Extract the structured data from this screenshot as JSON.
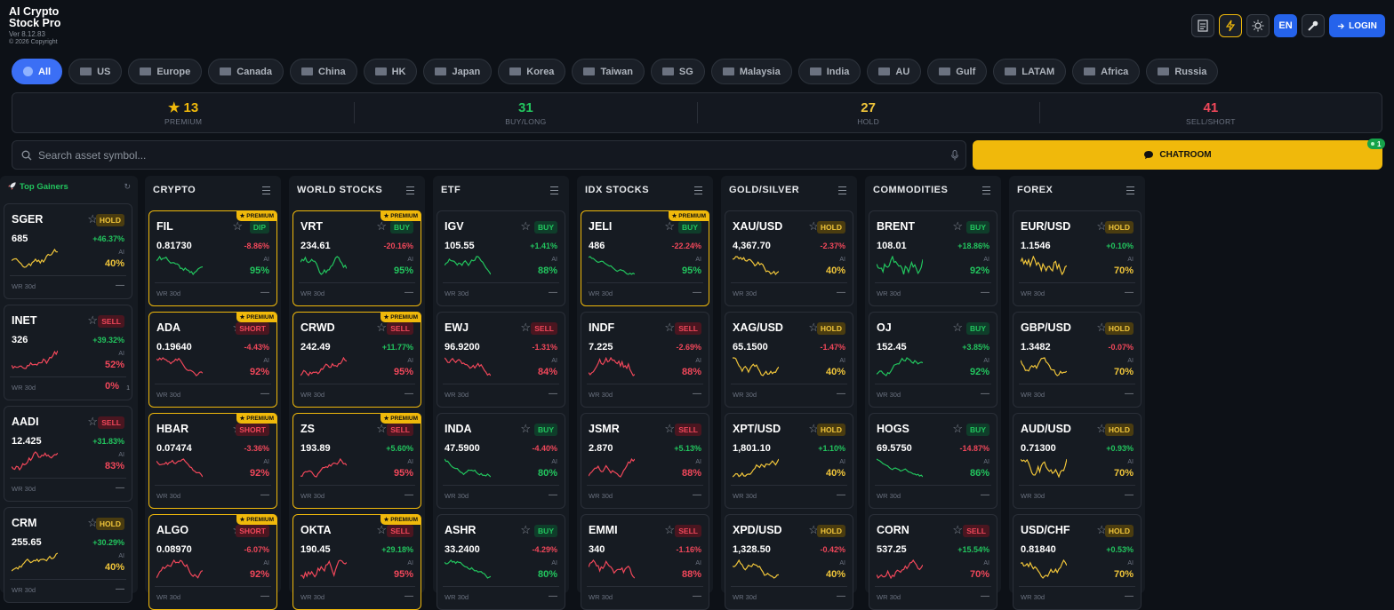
{
  "header": {
    "title_line1": "AI Crypto",
    "title_line2": "Stock Pro",
    "version": "Ver 8.12.83",
    "copyright": "© 2026 Copyright",
    "language": "EN",
    "login": "LOGIN"
  },
  "tabs": [
    {
      "label": "All",
      "active": true
    },
    {
      "label": "US"
    },
    {
      "label": "Europe"
    },
    {
      "label": "Canada"
    },
    {
      "label": "China"
    },
    {
      "label": "HK"
    },
    {
      "label": "Japan"
    },
    {
      "label": "Korea"
    },
    {
      "label": "Taiwan"
    },
    {
      "label": "SG"
    },
    {
      "label": "Malaysia"
    },
    {
      "label": "India"
    },
    {
      "label": "AU"
    },
    {
      "label": "Gulf"
    },
    {
      "label": "LATAM"
    },
    {
      "label": "Africa"
    },
    {
      "label": "Russia"
    }
  ],
  "stats": [
    {
      "icon": "★",
      "value": "13",
      "label": "PREMIUM",
      "color": "#f0b90b"
    },
    {
      "value": "31",
      "label": "BUY/LONG",
      "color": "#22c55e"
    },
    {
      "value": "27",
      "label": "HOLD",
      "color": "#f0c53a"
    },
    {
      "value": "41",
      "label": "SELL/SHORT",
      "color": "#f0475a"
    }
  ],
  "search": {
    "placeholder": "Search asset symbol..."
  },
  "chatroom": {
    "label": "CHATROOM",
    "badge": "1"
  },
  "labels": {
    "premium": "★ PREMIUM",
    "ai": "AI",
    "wr": "WR 30d"
  },
  "top_gainers": {
    "title": "Top Gainers",
    "cards": [
      {
        "symbol": "SGER",
        "signal": "HOLD",
        "price": "685",
        "change": "+46.37%",
        "confidence": "40%",
        "wr": "—"
      },
      {
        "symbol": "INET",
        "signal": "SELL",
        "price": "326",
        "change": "+39.32%",
        "confidence": "52%",
        "wr": "0%",
        "wr_count": "1"
      },
      {
        "symbol": "AADI",
        "signal": "SELL",
        "price": "12.425",
        "change": "+31.83%",
        "confidence": "83%",
        "wr": "—"
      },
      {
        "symbol": "CRM",
        "signal": "HOLD",
        "price": "255.65",
        "change": "+30.29%",
        "confidence": "40%",
        "wr": "—"
      }
    ]
  },
  "columns": [
    {
      "title": "CRYPTO",
      "cards": [
        {
          "symbol": "FIL",
          "signal": "DIP",
          "price": "0.81730",
          "change": "-8.86%",
          "confidence": "95%",
          "wr": "—",
          "premium": true
        },
        {
          "symbol": "ADA",
          "signal": "SHORT",
          "price": "0.19640",
          "change": "-4.43%",
          "confidence": "92%",
          "wr": "—",
          "premium": true
        },
        {
          "symbol": "HBAR",
          "signal": "SHORT",
          "price": "0.07474",
          "change": "-3.36%",
          "confidence": "92%",
          "wr": "—",
          "premium": true
        },
        {
          "symbol": "ALGO",
          "signal": "SHORT",
          "price": "0.08970",
          "change": "-6.07%",
          "confidence": "92%",
          "wr": "—",
          "premium": true
        }
      ]
    },
    {
      "title": "WORLD STOCKS",
      "cards": [
        {
          "symbol": "VRT",
          "signal": "BUY",
          "price": "234.61",
          "change": "-20.16%",
          "confidence": "95%",
          "wr": "—",
          "premium": true
        },
        {
          "symbol": "CRWD",
          "signal": "SELL",
          "price": "242.49",
          "change": "+11.77%",
          "confidence": "95%",
          "wr": "—",
          "premium": true
        },
        {
          "symbol": "ZS",
          "signal": "SELL",
          "price": "193.89",
          "change": "+5.60%",
          "confidence": "95%",
          "wr": "—",
          "premium": true
        },
        {
          "symbol": "OKTA",
          "signal": "SELL",
          "price": "190.45",
          "change": "+29.18%",
          "confidence": "95%",
          "wr": "—",
          "premium": true
        }
      ]
    },
    {
      "title": "ETF",
      "cards": [
        {
          "symbol": "IGV",
          "signal": "BUY",
          "price": "105.55",
          "change": "+1.41%",
          "confidence": "88%",
          "wr": "—"
        },
        {
          "symbol": "EWJ",
          "signal": "SELL",
          "price": "96.9200",
          "change": "-1.31%",
          "confidence": "84%",
          "wr": "—"
        },
        {
          "symbol": "INDA",
          "signal": "BUY",
          "price": "47.5900",
          "change": "-4.40%",
          "confidence": "80%",
          "wr": "—"
        },
        {
          "symbol": "ASHR",
          "signal": "BUY",
          "price": "33.2400",
          "change": "-4.29%",
          "confidence": "80%",
          "wr": "—"
        }
      ]
    },
    {
      "title": "IDX STOCKS",
      "cards": [
        {
          "symbol": "JELI",
          "signal": "BUY",
          "price": "486",
          "change": "-22.24%",
          "confidence": "95%",
          "wr": "—",
          "premium": true
        },
        {
          "symbol": "INDF",
          "signal": "SELL",
          "price": "7.225",
          "change": "-2.69%",
          "confidence": "88%",
          "wr": "—"
        },
        {
          "symbol": "JSMR",
          "signal": "SELL",
          "price": "2.870",
          "change": "+5.13%",
          "confidence": "88%",
          "wr": "—"
        },
        {
          "symbol": "EMMI",
          "signal": "SELL",
          "price": "340",
          "change": "-1.16%",
          "confidence": "88%",
          "wr": "—"
        }
      ]
    },
    {
      "title": "GOLD/SILVER",
      "cards": [
        {
          "symbol": "XAU/USD",
          "signal": "HOLD",
          "price": "4,367.70",
          "change": "-2.37%",
          "confidence": "40%",
          "wr": "—"
        },
        {
          "symbol": "XAG/USD",
          "signal": "HOLD",
          "price": "65.1500",
          "change": "-1.47%",
          "confidence": "40%",
          "wr": "—"
        },
        {
          "symbol": "XPT/USD",
          "signal": "HOLD",
          "price": "1,801.10",
          "change": "+1.10%",
          "confidence": "40%",
          "wr": "—"
        },
        {
          "symbol": "XPD/USD",
          "signal": "HOLD",
          "price": "1,328.50",
          "change": "-0.42%",
          "confidence": "40%",
          "wr": "—"
        }
      ]
    },
    {
      "title": "COMMODITIES",
      "cards": [
        {
          "symbol": "BRENT",
          "signal": "BUY",
          "price": "108.01",
          "change": "+18.86%",
          "confidence": "92%",
          "wr": "—"
        },
        {
          "symbol": "OJ",
          "signal": "BUY",
          "price": "152.45",
          "change": "+3.85%",
          "confidence": "92%",
          "wr": "—"
        },
        {
          "symbol": "HOGS",
          "signal": "BUY",
          "price": "69.5750",
          "change": "-14.87%",
          "confidence": "86%",
          "wr": "—"
        },
        {
          "symbol": "CORN",
          "signal": "SELL",
          "price": "537.25",
          "change": "+15.54%",
          "confidence": "70%",
          "wr": "—"
        }
      ]
    },
    {
      "title": "FOREX",
      "cards": [
        {
          "symbol": "EUR/USD",
          "signal": "HOLD",
          "price": "1.1546",
          "change": "+0.10%",
          "confidence": "70%",
          "wr": "—"
        },
        {
          "symbol": "GBP/USD",
          "signal": "HOLD",
          "price": "1.3482",
          "change": "-0.07%",
          "confidence": "70%",
          "wr": "—"
        },
        {
          "symbol": "AUD/USD",
          "signal": "HOLD",
          "price": "0.71300",
          "change": "+0.93%",
          "confidence": "70%",
          "wr": "—"
        },
        {
          "symbol": "USD/CHF",
          "signal": "HOLD",
          "price": "0.81840",
          "change": "+0.53%",
          "confidence": "70%",
          "wr": "—"
        }
      ]
    }
  ]
}
